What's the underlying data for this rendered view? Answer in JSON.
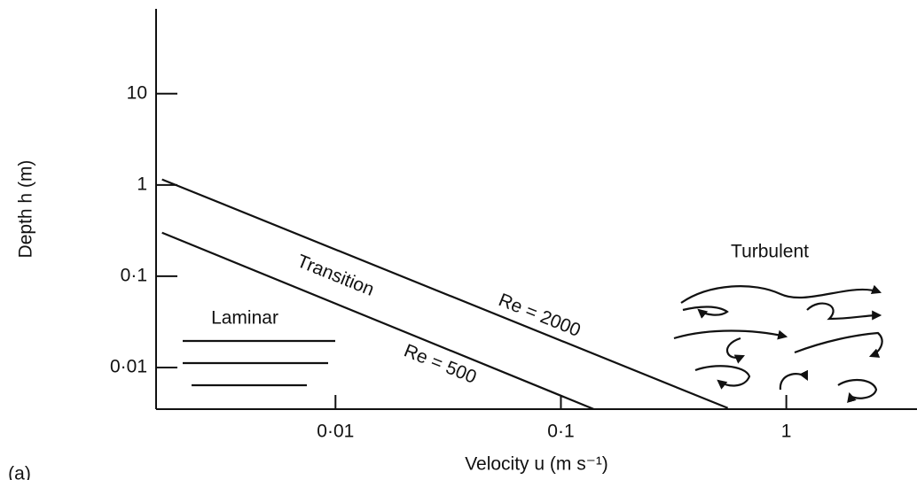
{
  "chart_data": {
    "type": "line",
    "xlabel": "Velocity u (m s⁻¹)",
    "ylabel": "Depth h (m)",
    "x_scale": "log",
    "y_scale": "log",
    "xlim": [
      0.0016,
      3.8
    ],
    "ylim": [
      0.0035,
      85
    ],
    "xticks": [
      {
        "value": 0.01,
        "label": "0·01"
      },
      {
        "value": 0.1,
        "label": "0·1"
      },
      1
    ],
    "yticks": [
      {
        "value": 0.01,
        "label": "0·01"
      },
      {
        "value": 0.1,
        "label": "0·1"
      },
      1,
      10
    ],
    "series": [
      {
        "name": "Re = 2000",
        "color": "#111111",
        "x": [
          0.0017,
          0.55
        ],
        "values": [
          1.15,
          0.0036
        ]
      },
      {
        "name": "Re = 500",
        "color": "#111111",
        "x": [
          0.0017,
          0.14
        ],
        "values": [
          0.3,
          0.0035
        ]
      }
    ],
    "annotations": [
      "Laminar",
      "Transition",
      "Turbulent",
      "(a)"
    ]
  }
}
